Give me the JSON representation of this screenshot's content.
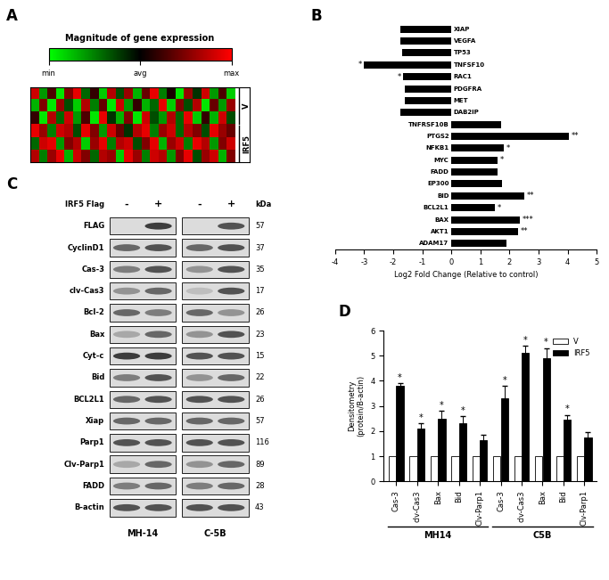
{
  "chart_data": [
    {
      "type": "heatmap",
      "panel": "A",
      "colorbar_title": "Magnitude of gene expression",
      "colors": [
        "#00ff00",
        "#000000",
        "#ff0000"
      ],
      "color_range": [
        -1,
        1
      ],
      "colorbar_ticks": [
        {
          "value": -1,
          "label": "min"
        },
        {
          "value": 0,
          "label": "avg"
        },
        {
          "value": 1,
          "label": "max"
        }
      ],
      "tick_labels": false,
      "row_groups": [
        {
          "label": "V",
          "rows": [
            0,
            2
          ]
        },
        {
          "label": "IRF5",
          "rows": [
            3,
            5
          ]
        }
      ],
      "cells": [
        [
          0.8,
          -0.6,
          0.3,
          -0.9,
          0.5,
          0.9,
          -0.4,
          0.2,
          -0.8,
          0.7,
          -0.3,
          0.6,
          -0.7,
          0.4,
          0.9,
          -0.5,
          0.1,
          -0.9,
          0.6,
          -0.2,
          0.8,
          -0.6,
          0.3,
          -0.8
        ],
        [
          -0.7,
          0.5,
          -0.9,
          0.6,
          -0.3,
          -0.8,
          0.7,
          -0.5,
          0.4,
          -0.9,
          0.8,
          -0.6,
          0.2,
          -0.7,
          -0.4,
          0.9,
          -0.8,
          0.5,
          -0.3,
          0.7,
          -0.9,
          0.4,
          -0.6,
          0.6
        ],
        [
          0.2,
          -0.9,
          0.7,
          -0.4,
          0.8,
          -0.6,
          0.3,
          -0.9,
          0.9,
          -0.2,
          -0.7,
          0.5,
          -0.9,
          0.8,
          -0.3,
          -0.6,
          0.7,
          -0.4,
          0.9,
          -0.8,
          0.2,
          -0.7,
          0.8,
          -0.3
        ],
        [
          0.9,
          0.6,
          -0.5,
          0.8,
          0.7,
          -0.3,
          0.9,
          0.5,
          -0.6,
          0.8,
          0.4,
          -0.2,
          0.7,
          0.9,
          -0.5,
          0.6,
          0.8,
          -0.4,
          0.7,
          0.5,
          -0.3,
          0.9,
          0.6,
          0.4
        ],
        [
          -0.4,
          0.8,
          0.9,
          -0.6,
          0.5,
          0.7,
          -0.8,
          0.6,
          0.9,
          -0.5,
          0.7,
          0.8,
          -0.3,
          0.5,
          0.9,
          -0.7,
          0.6,
          0.8,
          -0.5,
          0.9,
          0.7,
          -0.6,
          0.5,
          0.8
        ],
        [
          0.7,
          -0.5,
          0.6,
          0.9,
          -0.7,
          0.8,
          0.5,
          -0.4,
          0.7,
          0.6,
          -0.8,
          0.9,
          0.6,
          -0.5,
          0.8,
          0.7,
          -0.6,
          0.5,
          0.9,
          -0.3,
          0.6,
          0.8,
          -0.7,
          0.5
        ]
      ]
    },
    {
      "type": "bar",
      "panel": "B",
      "orientation": "horizontal",
      "color": "#000000",
      "categories": [
        "XIAP",
        "VEGFA",
        "TP53",
        "TNFSF10",
        "RAC1",
        "PDGFRA",
        "MET",
        "DAB2IP",
        "TNFRSF10B",
        "PTGS2",
        "NFKB1",
        "MYC",
        "FADD",
        "EP300",
        "BID",
        "BCL2L1",
        "BAX",
        "AKT1",
        "ADAM17"
      ],
      "values": [
        -1.75,
        -1.75,
        -1.7,
        -3.0,
        -1.65,
        -1.6,
        -1.6,
        -1.75,
        1.7,
        4.05,
        1.8,
        1.6,
        1.6,
        1.75,
        2.5,
        1.5,
        2.35,
        2.3,
        1.9
      ],
      "significance": [
        null,
        null,
        null,
        "*",
        "*",
        null,
        null,
        null,
        null,
        "**",
        "*",
        "*",
        null,
        null,
        "**",
        "*",
        "***",
        "**",
        null
      ],
      "xlabel": "Log2 Fold Change (Relative to control)",
      "xlim": [
        -4,
        5
      ],
      "xticks": [
        -4,
        -3,
        -2,
        -1,
        0,
        1,
        2,
        3,
        4,
        5
      ]
    },
    {
      "type": "bar",
      "panel": "D",
      "categories": [
        "Cas-3",
        "clv-Cas3",
        "Bax",
        "Bid",
        "Clv-Parp1",
        "Cas-3",
        "clv-Cas3",
        "Bax",
        "Bid",
        "Clv-Parp1"
      ],
      "series": [
        {
          "name": "V",
          "color": "#ffffff",
          "values": [
            1,
            1,
            1,
            1,
            1,
            1,
            1,
            1,
            1,
            1
          ]
        },
        {
          "name": "IRF5",
          "color": "#000000",
          "values": [
            3.8,
            2.1,
            2.5,
            2.3,
            1.65,
            3.3,
            5.1,
            4.9,
            2.45,
            1.75
          ],
          "errors": [
            0.1,
            0.2,
            0.3,
            0.3,
            0.2,
            0.5,
            0.3,
            0.4,
            0.2,
            0.2
          ],
          "significance": [
            "*",
            "*",
            "*",
            "*",
            null,
            "*",
            "*",
            "*",
            "*",
            null
          ]
        }
      ],
      "groups": [
        {
          "label": "MH14",
          "categories": [
            0,
            4
          ]
        },
        {
          "label": "C5B",
          "categories": [
            5,
            9
          ]
        }
      ],
      "ylabel": "Densitometry\n(protein/B-actin)",
      "ylim": [
        0,
        6
      ],
      "yticks": [
        0,
        1,
        2,
        3,
        4,
        5,
        6
      ],
      "legend": "upper right"
    }
  ],
  "blot": {
    "panel": "C",
    "header": "IRF5 Flag",
    "lanes": [
      "-",
      "+",
      "-",
      "+"
    ],
    "cell_lines": [
      "MH-14",
      "C-5B"
    ],
    "unit": "kDa",
    "rows": [
      {
        "label": "FLAG",
        "kda": 57,
        "intensity": [
          0,
          0.9,
          0,
          0.8
        ]
      },
      {
        "label": "CyclinD1",
        "kda": 37,
        "intensity": [
          0.7,
          0.8,
          0.7,
          0.8
        ]
      },
      {
        "label": "Cas-3",
        "kda": 35,
        "intensity": [
          0.6,
          0.8,
          0.5,
          0.8
        ]
      },
      {
        "label": "clv-Cas3",
        "kda": 17,
        "intensity": [
          0.5,
          0.7,
          0.3,
          0.8
        ]
      },
      {
        "label": "Bcl-2",
        "kda": 26,
        "intensity": [
          0.7,
          0.6,
          0.7,
          0.5
        ]
      },
      {
        "label": "Bax",
        "kda": 23,
        "intensity": [
          0.4,
          0.7,
          0.5,
          0.8
        ]
      },
      {
        "label": "Cyt-c",
        "kda": 15,
        "intensity": [
          0.9,
          0.9,
          0.8,
          0.8
        ]
      },
      {
        "label": "Bid",
        "kda": 22,
        "intensity": [
          0.6,
          0.8,
          0.5,
          0.7
        ]
      },
      {
        "label": "BCL2L1",
        "kda": 26,
        "intensity": [
          0.7,
          0.8,
          0.8,
          0.8
        ]
      },
      {
        "label": "Xiap",
        "kda": 57,
        "intensity": [
          0.7,
          0.7,
          0.7,
          0.7
        ]
      },
      {
        "label": "Parp1",
        "kda": 116,
        "intensity": [
          0.8,
          0.8,
          0.8,
          0.8
        ]
      },
      {
        "label": "Clv-Parp1",
        "kda": 89,
        "intensity": [
          0.4,
          0.7,
          0.5,
          0.7
        ]
      },
      {
        "label": "FADD",
        "kda": 28,
        "intensity": [
          0.6,
          0.7,
          0.6,
          0.7
        ]
      },
      {
        "label": "B-actin",
        "kda": 43,
        "intensity": [
          0.8,
          0.8,
          0.8,
          0.8
        ]
      }
    ]
  }
}
